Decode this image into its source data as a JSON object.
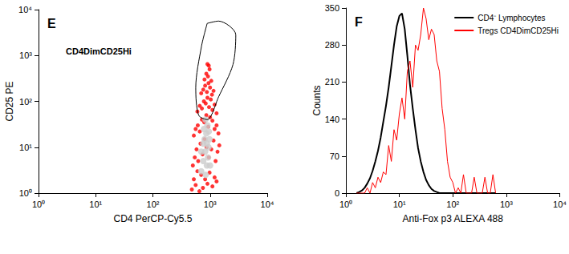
{
  "chart_data": [
    {
      "type": "scatter",
      "title": "E",
      "xlabel": "CD4 PerCP-Cy5.5",
      "ylabel": "CD25 PE",
      "log": true,
      "grid": false,
      "xlim": [
        1,
        10000
      ],
      "ylim": [
        1,
        10000
      ],
      "xticks": [
        {
          "value": 1,
          "label": "10⁰"
        },
        {
          "value": 10,
          "label": "10¹"
        },
        {
          "value": 100,
          "label": "10²"
        },
        {
          "value": 1000,
          "label": "10³"
        },
        {
          "value": 10000,
          "label": "10⁴"
        }
      ],
      "yticks": [
        {
          "value": 1,
          "label": "10⁰"
        },
        {
          "value": 10,
          "label": "10¹"
        },
        {
          "value": 100,
          "label": "10²"
        },
        {
          "value": 1000,
          "label": "10³"
        },
        {
          "value": 10000,
          "label": "10⁴"
        }
      ],
      "series": [
        {
          "color": "#ff0000",
          "marker": "circle",
          "x": [
            480,
            520,
            560,
            600,
            650,
            700,
            750,
            820,
            900,
            980,
            1100,
            1200,
            1300,
            500,
            540,
            580,
            620,
            680,
            740,
            800,
            870,
            950,
            1050,
            1150,
            1250,
            1350,
            1450,
            520,
            560,
            610,
            660,
            720,
            790,
            860,
            930,
            1000,
            1100,
            1200,
            1300,
            1400,
            600,
            660,
            720,
            780,
            840,
            900,
            960,
            1030,
            1100,
            1200,
            1300,
            700,
            760,
            820,
            880,
            940,
            1000,
            1080,
            1150,
            800,
            860,
            920,
            980,
            1050,
            900,
            950
          ],
          "y": [
            1.2,
            2,
            1.5,
            3,
            1.1,
            2.5,
            1.3,
            2,
            1.6,
            2.8,
            1.4,
            2.2,
            1.8,
            4,
            6,
            9,
            5,
            12,
            7,
            15,
            10,
            6,
            9,
            14,
            5,
            8,
            11,
            18,
            25,
            30,
            22,
            40,
            35,
            50,
            28,
            45,
            38,
            25,
            30,
            20,
            60,
            80,
            70,
            100,
            90,
            120,
            75,
            110,
            65,
            85,
            55,
            150,
            180,
            220,
            160,
            250,
            200,
            140,
            170,
            300,
            400,
            350,
            500,
            280,
            650,
            600
          ]
        },
        {
          "color": "#cccccc",
          "marker": "circle",
          "x": [
            700,
            760,
            820,
            880,
            940,
            800,
            860,
            760,
            900,
            980,
            700,
            840,
            920,
            1000,
            780,
            880,
            830,
            950
          ],
          "y": [
            3,
            5,
            8,
            4,
            10,
            15,
            20,
            12,
            30,
            15,
            8,
            2.5,
            6,
            4,
            25,
            12,
            40,
            22
          ]
        }
      ],
      "gate": {
        "label": "CD4DimCD25Hi",
        "color": "#000000",
        "x": [
          891,
          1413,
          2818,
          2512,
          1413,
          891,
          631,
          562,
          708,
          891
        ],
        "y": [
          5012,
          5623,
          2818,
          631,
          126,
          40,
          50,
          200,
          1585,
          5012
        ]
      }
    },
    {
      "type": "line",
      "title": "F",
      "xlabel": "Anti-Fox p3 ALEXA 488",
      "ylabel": "Counts",
      "log": "x",
      "grid": false,
      "legend": "upper right",
      "xlim": [
        1,
        10000
      ],
      "ylim": [
        0,
        350
      ],
      "xticks": [
        {
          "value": 1,
          "label": "10⁰"
        },
        {
          "value": 10,
          "label": "10¹"
        },
        {
          "value": 100,
          "label": "10²"
        },
        {
          "value": 1000,
          "label": "10³"
        },
        {
          "value": 10000,
          "label": "10⁴"
        }
      ],
      "yticks": [
        0,
        70,
        140,
        210,
        280,
        350
      ],
      "x": [
        1.58,
        1.78,
        2,
        2.24,
        2.51,
        2.82,
        3.16,
        3.55,
        3.98,
        4.47,
        5.01,
        5.62,
        6.31,
        7.08,
        7.94,
        8.91,
        10,
        11.2,
        12.6,
        14.1,
        15.8,
        17.8,
        20,
        22.4,
        25.1,
        28.2,
        31.6,
        35.5,
        39.8,
        44.7,
        50.1,
        56.2,
        63.1,
        70.8,
        79.4,
        89.1,
        100,
        112,
        126,
        141,
        158,
        178,
        200,
        224,
        251,
        282,
        316,
        355,
        398,
        447,
        501,
        562,
        631
      ],
      "series": [
        {
          "name": "CD4⁻ Lymphocytes",
          "color": "#000000",
          "line_style": "solid",
          "values": [
            0,
            2,
            5,
            10,
            18,
            28,
            42,
            60,
            80,
            105,
            135,
            165,
            200,
            240,
            280,
            315,
            335,
            340,
            310,
            260,
            205,
            160,
            120,
            85,
            60,
            40,
            25,
            15,
            8,
            4,
            2,
            0,
            0,
            0,
            0,
            0,
            0,
            0,
            0,
            0,
            0,
            0,
            0,
            0,
            0,
            0,
            0,
            0,
            0,
            0,
            0,
            0,
            0
          ]
        },
        {
          "name": "Tregs CD4DimCD25Hi",
          "color": "#ff0000",
          "line_style": "solid",
          "values": [
            0,
            0,
            0,
            0,
            10,
            0,
            20,
            10,
            30,
            20,
            40,
            35,
            90,
            60,
            120,
            100,
            150,
            180,
            140,
            230,
            250,
            200,
            280,
            270,
            300,
            350,
            330,
            290,
            310,
            300,
            250,
            230,
            160,
            120,
            60,
            30,
            20,
            0,
            10,
            0,
            35,
            0,
            0,
            0,
            30,
            0,
            0,
            0,
            30,
            0,
            0,
            35,
            0
          ]
        }
      ]
    }
  ]
}
